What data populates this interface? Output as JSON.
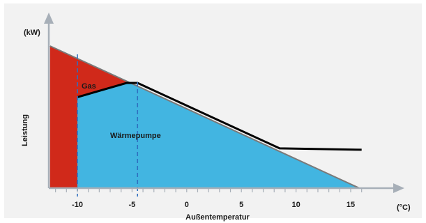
{
  "chart_data": {
    "type": "area",
    "y_unit_label": "(kW)",
    "x_unit_label": "(°C)",
    "ylabel": "Leistung",
    "xlabel": "Außentemperatur",
    "xlim": [
      -13.5,
      16.5
    ],
    "ylim": [
      0,
      100
    ],
    "x_ticks": [
      -10,
      -5,
      0,
      5,
      10,
      15
    ],
    "heating_demand": {
      "x": [
        -12.5,
        15.8
      ],
      "y": [
        100,
        0
      ]
    },
    "heat_pump_output": {
      "x": [
        -10,
        -5.5,
        -4.5,
        8.5,
        16
      ],
      "y": [
        64,
        74,
        74,
        28,
        27
      ]
    },
    "bivalence_points": [
      -10,
      -4.5
    ],
    "regions": [
      {
        "name": "Gas",
        "color": "#d0291a"
      },
      {
        "name": "Wärmepumpe",
        "color": "#42b5e1"
      }
    ],
    "colors": {
      "axis": "#a7afb8",
      "demand_line": "#7a7a7a",
      "heat_pump_line": "#000000",
      "marker": "#2f6fbf"
    }
  }
}
